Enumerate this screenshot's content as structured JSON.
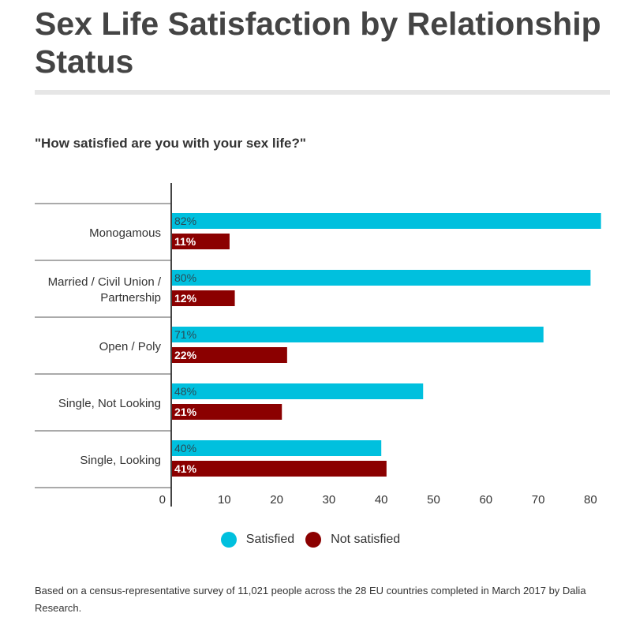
{
  "title": "Sex Life Satisfaction by Relationship Status",
  "chart_data": {
    "type": "bar",
    "orientation": "horizontal",
    "title": "Sex Life Satisfaction by Relationship Status",
    "subtitle": "\"How satisfied are you with your sex life?\"",
    "categories": [
      [
        "Monogamous"
      ],
      [
        "Married / Civil Union /",
        "Partnership"
      ],
      [
        "Open / Poly"
      ],
      [
        "Single, Not Looking"
      ],
      [
        "Single, Looking"
      ]
    ],
    "series": [
      {
        "name": "Satisfied",
        "color": "#00c0de",
        "values": [
          82,
          80,
          71,
          48,
          40
        ],
        "labels": [
          "82%",
          "80%",
          "71%",
          "48%",
          "40%"
        ]
      },
      {
        "name": "Not satisfied",
        "color": "#8b0000",
        "values": [
          11,
          12,
          22,
          21,
          41
        ],
        "labels": [
          "11%",
          "12%",
          "22%",
          "21%",
          "41%"
        ]
      }
    ],
    "xticks": [
      "0",
      "10",
      "20",
      "30",
      "40",
      "50",
      "60",
      "70",
      "80"
    ],
    "xlim": [
      0,
      85
    ],
    "grid": false,
    "legend": "bottom-center"
  },
  "note": "Based on a census-representative survey of 11,021 people across the 28 EU countries completed in March 2017 by Dalia Research."
}
